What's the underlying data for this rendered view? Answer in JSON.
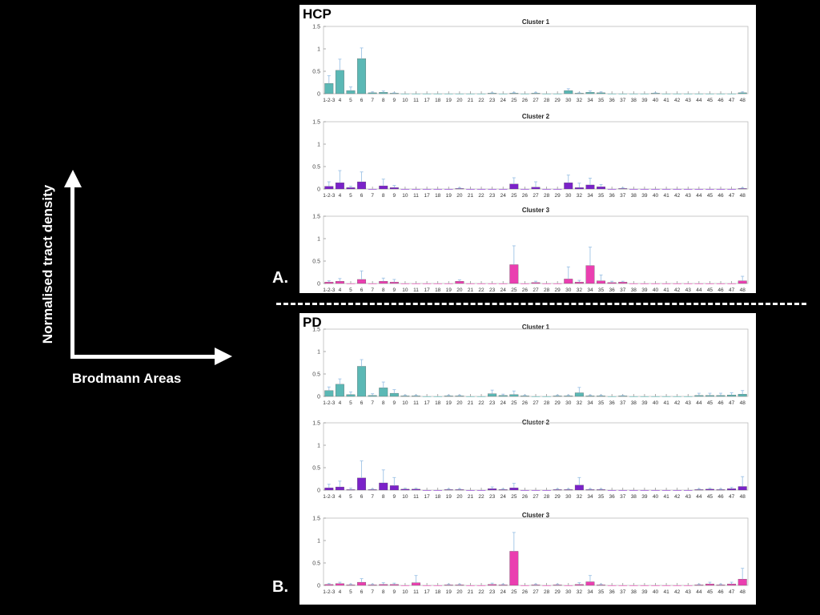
{
  "axes_overlay": {
    "y_title": "Normalised tract density",
    "x_title": "Brodmann Areas"
  },
  "colors": {
    "cluster1": "#5bb8b5",
    "cluster2": "#7b22c9",
    "cluster3": "#ea3fb0",
    "error": "#9ec3e6"
  },
  "chart_data": [
    {
      "group": "HCP",
      "letter": "A.",
      "type": "bar",
      "categories": [
        "1-2-3",
        "4",
        "5",
        "6",
        "7",
        "8",
        "9",
        "10",
        "11",
        "17",
        "18",
        "19",
        "20",
        "21",
        "22",
        "23",
        "24",
        "25",
        "26",
        "27",
        "28",
        "29",
        "30",
        "32",
        "34",
        "35",
        "36",
        "37",
        "38",
        "39",
        "40",
        "41",
        "42",
        "43",
        "44",
        "45",
        "46",
        "47",
        "48"
      ],
      "ylim": [
        0,
        1.5
      ],
      "yticks": [
        "0",
        "0.5",
        "1",
        "1.5"
      ],
      "clusters": [
        {
          "title": "Cluster 1",
          "color_key": "cluster1",
          "values": [
            0.23,
            0.52,
            0.07,
            0.78,
            0.02,
            0.03,
            0.01,
            0,
            0,
            0,
            0,
            0,
            0,
            0,
            0,
            0.01,
            0,
            0.01,
            0,
            0.01,
            0,
            0,
            0.07,
            0.01,
            0.03,
            0.02,
            0,
            0,
            0,
            0,
            0.01,
            0,
            0,
            0,
            0,
            0,
            0,
            0,
            0.02
          ],
          "errors": [
            0.17,
            0.25,
            0.08,
            0.24,
            0.02,
            0.03,
            0.01,
            0,
            0,
            0,
            0,
            0,
            0,
            0,
            0,
            0.01,
            0,
            0.02,
            0,
            0.02,
            0,
            0,
            0.04,
            0.01,
            0.03,
            0.02,
            0,
            0,
            0,
            0,
            0.01,
            0,
            0,
            0,
            0,
            0,
            0,
            0,
            0.02
          ]
        },
        {
          "title": "Cluster 2",
          "color_key": "cluster2",
          "values": [
            0.06,
            0.14,
            0.03,
            0.16,
            0,
            0.07,
            0.03,
            0,
            0,
            0,
            0,
            0,
            0.01,
            0,
            0,
            0,
            0,
            0.11,
            0,
            0.04,
            0,
            0,
            0.14,
            0.03,
            0.09,
            0.05,
            0,
            0.01,
            0,
            0,
            0,
            0,
            0,
            0,
            0,
            0,
            0,
            0,
            0.01
          ],
          "errors": [
            0.1,
            0.27,
            0.03,
            0.22,
            0,
            0.15,
            0.05,
            0,
            0,
            0,
            0,
            0,
            0.02,
            0,
            0,
            0,
            0,
            0.14,
            0,
            0.12,
            0,
            0,
            0.17,
            0.1,
            0.15,
            0.05,
            0,
            0.02,
            0,
            0,
            0,
            0,
            0,
            0,
            0,
            0,
            0,
            0,
            0.02
          ]
        },
        {
          "title": "Cluster 3",
          "color_key": "cluster3",
          "values": [
            0.03,
            0.05,
            0,
            0.09,
            0,
            0.05,
            0.03,
            0,
            0,
            0,
            0,
            0,
            0.05,
            0,
            0,
            0,
            0,
            0.42,
            0,
            0.02,
            0,
            0,
            0.1,
            0.03,
            0.4,
            0.06,
            0.02,
            0.03,
            0,
            0,
            0,
            0,
            0,
            0,
            0,
            0,
            0,
            0,
            0.06
          ],
          "errors": [
            0.03,
            0.06,
            0,
            0.19,
            0,
            0.07,
            0.06,
            0,
            0,
            0,
            0,
            0,
            0.03,
            0,
            0,
            0,
            0,
            0.42,
            0,
            0.03,
            0,
            0,
            0.27,
            0.04,
            0.41,
            0.13,
            0.03,
            0.02,
            0,
            0,
            0,
            0,
            0,
            0,
            0,
            0,
            0,
            0,
            0.1
          ]
        }
      ]
    },
    {
      "group": "PD",
      "letter": "B.",
      "type": "bar",
      "categories": [
        "1-2-3",
        "4",
        "5",
        "6",
        "7",
        "8",
        "9",
        "10",
        "11",
        "17",
        "18",
        "19",
        "20",
        "21",
        "22",
        "23",
        "24",
        "25",
        "26",
        "27",
        "28",
        "29",
        "30",
        "32",
        "34",
        "35",
        "36",
        "37",
        "38",
        "39",
        "40",
        "41",
        "42",
        "43",
        "44",
        "45",
        "46",
        "47",
        "48"
      ],
      "ylim": [
        0,
        1.5
      ],
      "yticks": [
        "0",
        "0.5",
        "1",
        "1.5"
      ],
      "clusters": [
        {
          "title": "Cluster 1",
          "color_key": "cluster1",
          "values": [
            0.13,
            0.27,
            0.04,
            0.67,
            0.02,
            0.19,
            0.07,
            0.01,
            0.01,
            0,
            0,
            0.01,
            0.01,
            0,
            0,
            0.06,
            0.02,
            0.04,
            0.01,
            0,
            0,
            0.01,
            0.01,
            0.08,
            0.01,
            0.01,
            0,
            0.01,
            0,
            0,
            0,
            0,
            0,
            0,
            0.02,
            0.02,
            0.02,
            0.03,
            0.05
          ],
          "errors": [
            0.08,
            0.12,
            0.06,
            0.15,
            0.04,
            0.13,
            0.08,
            0.02,
            0.02,
            0,
            0,
            0.02,
            0.02,
            0,
            0,
            0.08,
            0.03,
            0.08,
            0.02,
            0,
            0,
            0.02,
            0.02,
            0.12,
            0.02,
            0.02,
            0,
            0.01,
            0,
            0,
            0,
            0,
            0,
            0,
            0.05,
            0.05,
            0.05,
            0.05,
            0.08
          ]
        },
        {
          "title": "Cluster 2",
          "color_key": "cluster2",
          "values": [
            0.05,
            0.07,
            0.01,
            0.27,
            0.01,
            0.16,
            0.1,
            0.02,
            0.02,
            0,
            0,
            0.01,
            0.01,
            0,
            0,
            0.03,
            0.01,
            0.05,
            0,
            0,
            0,
            0.01,
            0.01,
            0.11,
            0.01,
            0.01,
            0,
            0,
            0,
            0,
            0,
            0,
            0,
            0,
            0.01,
            0.02,
            0.01,
            0.03,
            0.08
          ],
          "errors": [
            0.08,
            0.13,
            0.03,
            0.38,
            0.02,
            0.29,
            0.18,
            0.02,
            0.02,
            0,
            0,
            0.02,
            0.02,
            0,
            0,
            0.04,
            0.02,
            0.1,
            0,
            0,
            0,
            0.02,
            0.02,
            0.17,
            0.02,
            0.02,
            0,
            0,
            0,
            0,
            0,
            0,
            0,
            0,
            0.02,
            0.02,
            0.02,
            0.03,
            0.22
          ]
        },
        {
          "title": "Cluster 3",
          "color_key": "cluster3",
          "values": [
            0.02,
            0.04,
            0.01,
            0.07,
            0.01,
            0.02,
            0.02,
            0,
            0.06,
            0,
            0,
            0.01,
            0.01,
            0,
            0,
            0.02,
            0.01,
            0.76,
            0,
            0.01,
            0,
            0.01,
            0,
            0.02,
            0.08,
            0.01,
            0,
            0,
            0,
            0,
            0,
            0,
            0,
            0,
            0.01,
            0.03,
            0.01,
            0.03,
            0.14
          ],
          "errors": [
            0.02,
            0.03,
            0.02,
            0.08,
            0.02,
            0.04,
            0.03,
            0,
            0.16,
            0,
            0,
            0.02,
            0.02,
            0,
            0,
            0.03,
            0.02,
            0.42,
            0,
            0.02,
            0,
            0.02,
            0,
            0.04,
            0.14,
            0.02,
            0,
            0,
            0,
            0,
            0,
            0,
            0,
            0,
            0.02,
            0.04,
            0.02,
            0.04,
            0.24
          ]
        }
      ]
    }
  ]
}
